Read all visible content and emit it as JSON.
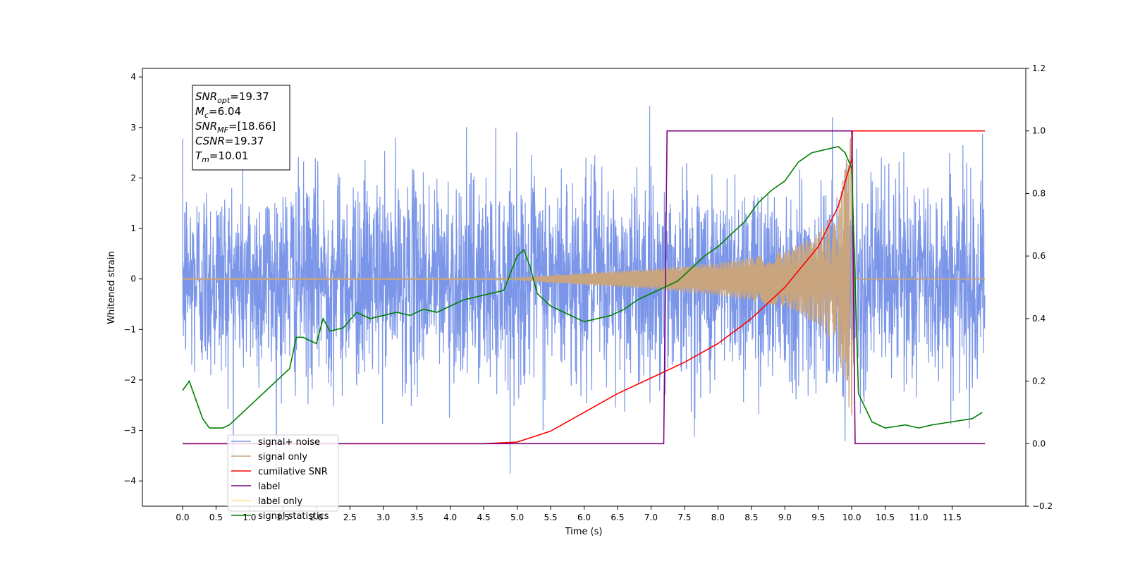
{
  "chart_data": {
    "type": "line",
    "title": "",
    "xlabel": "Time (s)",
    "ylabel": "Whitened strain",
    "xlim": [
      -0.6,
      12.6
    ],
    "ylim_left": [
      -4.5,
      4.17
    ],
    "ylim_right": [
      -0.2,
      1.2
    ],
    "x_ticks": [
      "0.0",
      "0.5",
      "1.0",
      "1.5",
      "2.0",
      "2.5",
      "3.0",
      "3.5",
      "4.0",
      "4.5",
      "5.0",
      "5.5",
      "6.0",
      "6.5",
      "7.0",
      "7.5",
      "8.0",
      "8.5",
      "9.0",
      "9.5",
      "10.0",
      "10.5",
      "11.0",
      "11.5"
    ],
    "y_ticks_left": [
      "−4",
      "−3",
      "−2",
      "−1",
      "0",
      "1",
      "2",
      "3",
      "4"
    ],
    "y_ticks_right": [
      "−0.2",
      "0.0",
      "0.2",
      "0.4",
      "0.6",
      "0.8",
      "1.0",
      "1.2"
    ],
    "grid": false,
    "legend_position": "lower-left",
    "stats_box": [
      {
        "base": "SNR",
        "sub": "opt",
        "value": "=19.37"
      },
      {
        "base": "M",
        "sub": "c",
        "value": "=6.04"
      },
      {
        "base": "SNR",
        "sub": "MF",
        "value": "=[18.66]"
      },
      {
        "base": "CSNR",
        "sub": "",
        "value": "=19.37"
      },
      {
        "base": "T",
        "sub": "m",
        "value": "=10.01"
      }
    ],
    "series": [
      {
        "name": "signal+ noise",
        "axis": "left",
        "color": "#7b96e8",
        "x_range": [
          0.0,
          11.99
        ],
        "sample_rate": 256,
        "typical_amplitude": 1.0,
        "extremes": [
          -4.1,
          3.8
        ]
      },
      {
        "name": "signal only",
        "axis": "left",
        "color": "#c8a57f",
        "x_range": [
          0.0,
          11.99
        ],
        "chirp_start": 5.0,
        "merger": 10.01,
        "envelope_points": [
          [
            5.0,
            0.02
          ],
          [
            6.0,
            0.12
          ],
          [
            7.0,
            0.2
          ],
          [
            8.0,
            0.32
          ],
          [
            9.0,
            0.55
          ],
          [
            9.5,
            0.9
          ],
          [
            9.8,
            1.5
          ],
          [
            9.95,
            2.6
          ],
          [
            10.01,
            3.0
          ],
          [
            10.05,
            0.0
          ]
        ]
      },
      {
        "name": "cumilative SNR",
        "axis": "right",
        "color": "#ff0000",
        "x": [
          0.0,
          4.5,
          5.0,
          5.5,
          6.0,
          6.5,
          7.0,
          7.5,
          8.0,
          8.5,
          9.0,
          9.5,
          9.8,
          10.0,
          10.01,
          11.99
        ],
        "y": [
          0.0,
          0.0,
          0.005,
          0.04,
          0.1,
          0.16,
          0.21,
          0.26,
          0.32,
          0.4,
          0.5,
          0.63,
          0.76,
          0.91,
          1.0,
          1.0
        ]
      },
      {
        "name": "label",
        "axis": "right",
        "color": "#800080",
        "x": [
          0.0,
          7.19,
          7.24,
          10.0,
          10.05,
          11.99
        ],
        "y": [
          0.0,
          0.0,
          1.0,
          1.0,
          0.0,
          0.0
        ]
      },
      {
        "name": "label only",
        "axis": "right",
        "color": "#ffe082",
        "hidden": true
      },
      {
        "name": "signal statistics",
        "axis": "right",
        "color": "#008000",
        "x": [
          0.0,
          0.1,
          0.2,
          0.3,
          0.4,
          0.5,
          0.6,
          0.7,
          0.8,
          1.0,
          1.2,
          1.4,
          1.6,
          1.7,
          1.8,
          2.0,
          2.1,
          2.2,
          2.4,
          2.6,
          2.8,
          3.0,
          3.2,
          3.4,
          3.6,
          3.8,
          4.0,
          4.2,
          4.4,
          4.6,
          4.8,
          5.0,
          5.1,
          5.2,
          5.3,
          5.5,
          5.7,
          6.0,
          6.2,
          6.4,
          6.6,
          6.8,
          7.0,
          7.2,
          7.4,
          7.6,
          7.8,
          8.0,
          8.2,
          8.4,
          8.6,
          8.8,
          9.0,
          9.2,
          9.4,
          9.6,
          9.8,
          9.9,
          10.0,
          10.1,
          10.3,
          10.5,
          10.8,
          11.0,
          11.2,
          11.5,
          11.8,
          11.95
        ],
        "y": [
          0.17,
          0.2,
          0.14,
          0.08,
          0.05,
          0.05,
          0.05,
          0.06,
          0.08,
          0.12,
          0.16,
          0.2,
          0.24,
          0.34,
          0.34,
          0.32,
          0.4,
          0.36,
          0.37,
          0.42,
          0.4,
          0.41,
          0.42,
          0.41,
          0.43,
          0.42,
          0.44,
          0.46,
          0.47,
          0.48,
          0.49,
          0.6,
          0.62,
          0.56,
          0.48,
          0.44,
          0.42,
          0.39,
          0.4,
          0.41,
          0.43,
          0.46,
          0.48,
          0.5,
          0.52,
          0.56,
          0.6,
          0.63,
          0.67,
          0.71,
          0.77,
          0.81,
          0.84,
          0.9,
          0.93,
          0.94,
          0.95,
          0.93,
          0.88,
          0.16,
          0.07,
          0.05,
          0.06,
          0.05,
          0.06,
          0.07,
          0.08,
          0.1
        ]
      }
    ]
  }
}
